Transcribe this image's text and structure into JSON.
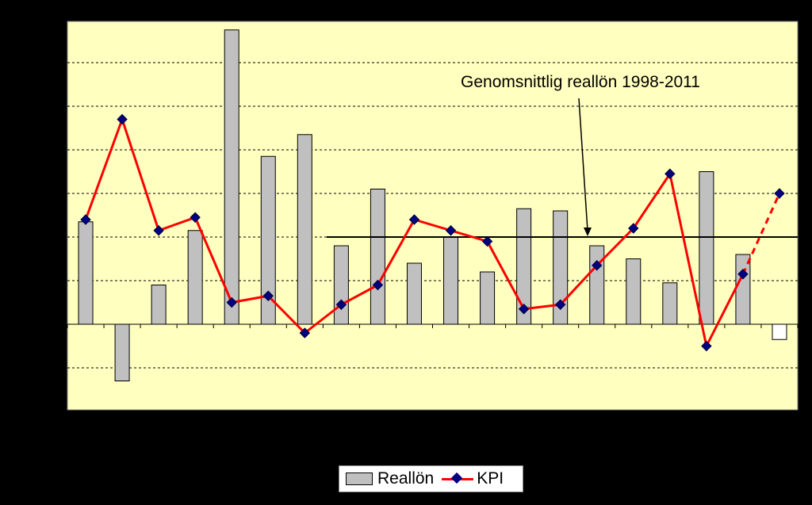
{
  "chart_data": {
    "type": "bar",
    "title": "",
    "xlabel": "",
    "ylabel": "",
    "ylim": [
      -2,
      7
    ],
    "gridlines": true,
    "gridline_values": [
      -1,
      1,
      2,
      3,
      4,
      5,
      6
    ],
    "n_categories": 20,
    "series": [
      {
        "name": "Reallön",
        "kind": "bar",
        "color": "#c0c0c0",
        "values": [
          2.35,
          -1.3,
          0.9,
          2.15,
          6.75,
          3.85,
          4.35,
          1.8,
          3.1,
          1.4,
          2.0,
          1.2,
          2.65,
          2.6,
          1.8,
          1.5,
          0.95,
          3.5,
          1.6,
          -0.35
        ],
        "note_last_value_hollow": true
      },
      {
        "name": "KPI",
        "kind": "line",
        "color": "#ff0000",
        "marker_color": "#000080",
        "values": [
          2.4,
          4.7,
          2.15,
          2.45,
          0.5,
          0.65,
          -0.2,
          0.45,
          0.9,
          2.4,
          2.15,
          1.9,
          0.35,
          0.45,
          1.35,
          2.2,
          3.45,
          -0.5,
          1.15,
          3.0
        ],
        "dashed_from_index": 18
      }
    ],
    "reference_line": {
      "value": 2.0,
      "from_index": 6.6,
      "label": "Genomsnittlig reallön 1998-2011"
    },
    "legend_position": "bottom-center"
  },
  "colors": {
    "background": "#000000",
    "plot_background": "#ffffc0",
    "bar": "#c0c0c0",
    "line": "#ff0000",
    "marker": "#000080"
  },
  "legend": {
    "items": [
      "Reallön",
      "KPI"
    ]
  }
}
